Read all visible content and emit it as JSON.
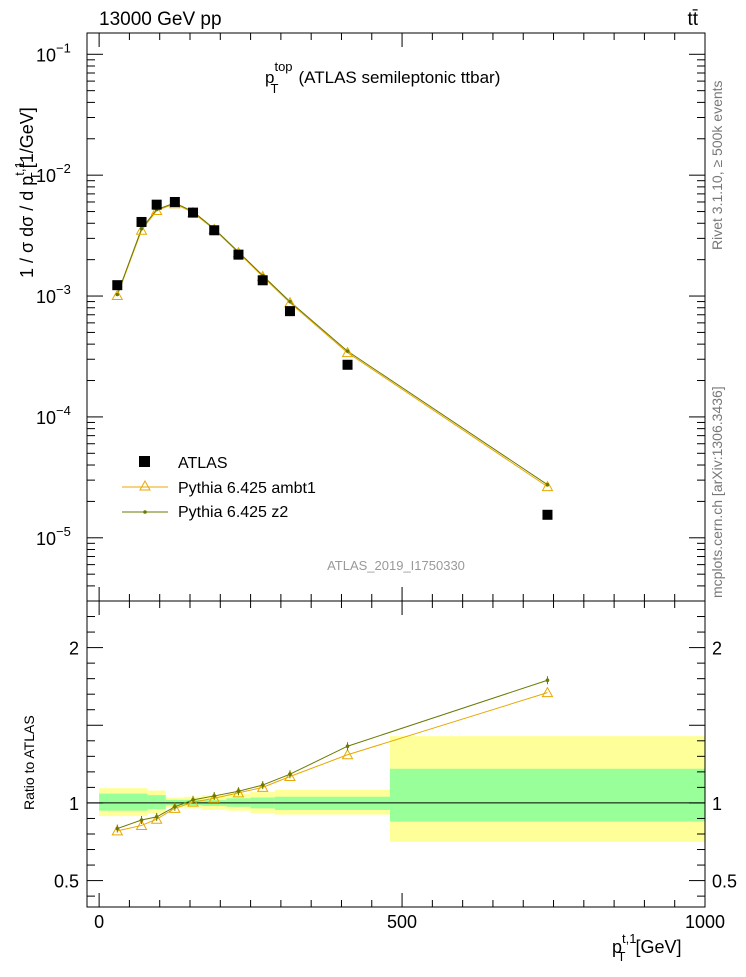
{
  "header": {
    "left": "13000 GeV pp",
    "right": "tt̄"
  },
  "side_labels": {
    "rivet": "Rivet 3.1.10, ≥ 500k events",
    "mcplots": "mcplots.cern.ch [arXiv:1306.3436]"
  },
  "chart_data": [
    {
      "type": "scatter",
      "title_main": "p",
      "title_sup": "top",
      "title_sub": "T",
      "title_rest": "(ATLAS semileptonic ttbar)",
      "ylabel": "1 / σ dσ / d p_T^{t,1} [1/GeV]",
      "yscale": "log",
      "ylim": [
        3e-06,
        0.15
      ],
      "xlim": [
        -20,
        1000
      ],
      "analysis_id": "ATLAS_2019_I1750330",
      "y_tick_labels": [
        {
          "value": 0.1,
          "base": "10",
          "exp": "−1"
        },
        {
          "value": 0.01,
          "base": "10",
          "exp": "−2"
        },
        {
          "value": 0.001,
          "base": "10",
          "exp": "−3"
        },
        {
          "value": 0.0001,
          "base": "10",
          "exp": "−4"
        },
        {
          "value": 1e-05,
          "base": "10",
          "exp": "−5"
        }
      ],
      "legend": [
        {
          "label": "ATLAS",
          "color": "#000000",
          "marker": "square"
        },
        {
          "label": "Pythia 6.425 ambt1",
          "color": "#e8a800",
          "marker": "triangle"
        },
        {
          "label": "Pythia 6.425 z2",
          "color": "#6b7a00",
          "marker": "dot"
        }
      ],
      "series": [
        {
          "name": "ATLAS",
          "x": [
            30,
            70,
            95,
            125,
            155,
            190,
            230,
            270,
            315,
            410,
            740
          ],
          "y": [
            0.00123,
            0.0041,
            0.0057,
            0.006,
            0.0049,
            0.0035,
            0.0022,
            0.00135,
            0.00075,
            0.00027,
            1.55e-05
          ]
        },
        {
          "name": "Pythia 6.425 ambt1",
          "x": [
            30,
            70,
            95,
            125,
            155,
            190,
            230,
            270,
            315,
            410,
            740
          ],
          "y": [
            0.00101,
            0.0035,
            0.0051,
            0.0058,
            0.0049,
            0.00355,
            0.00228,
            0.00145,
            0.00088,
            0.00034,
            2.65e-05
          ]
        },
        {
          "name": "Pythia 6.425 z2",
          "x": [
            30,
            70,
            95,
            125,
            155,
            190,
            230,
            270,
            315,
            410,
            740
          ],
          "y": [
            0.00103,
            0.0036,
            0.0052,
            0.0059,
            0.005,
            0.0036,
            0.00232,
            0.00148,
            0.0009,
            0.00035,
            2.75e-05
          ]
        }
      ]
    },
    {
      "type": "line",
      "ylabel": "Ratio to ATLAS",
      "xlabel": "p_T^{t,1} [GeV]",
      "ylim": [
        0.33,
        2.3
      ],
      "xlim": [
        -20,
        1000
      ],
      "y_tick_labels": [
        "2",
        "1",
        "0.5"
      ],
      "x_tick_labels": [
        "0",
        "500",
        "1000"
      ],
      "bands": [
        {
          "x0": 0,
          "x1": 80,
          "inner": [
            0.95,
            1.06
          ],
          "outer": [
            0.915,
            1.095
          ]
        },
        {
          "x0": 80,
          "x1": 110,
          "inner": [
            0.96,
            1.05
          ],
          "outer": [
            0.93,
            1.08
          ]
        },
        {
          "x0": 110,
          "x1": 140,
          "inner": [
            0.985,
            1.02
          ],
          "outer": [
            0.97,
            1.035
          ]
        },
        {
          "x0": 140,
          "x1": 170,
          "inner": [
            0.985,
            1.02
          ],
          "outer": [
            0.965,
            1.04
          ]
        },
        {
          "x0": 170,
          "x1": 210,
          "inner": [
            0.98,
            1.02
          ],
          "outer": [
            0.955,
            1.05
          ]
        },
        {
          "x0": 210,
          "x1": 250,
          "inner": [
            0.975,
            1.03
          ],
          "outer": [
            0.95,
            1.06
          ]
        },
        {
          "x0": 250,
          "x1": 290,
          "inner": [
            0.965,
            1.035
          ],
          "outer": [
            0.935,
            1.07
          ]
        },
        {
          "x0": 290,
          "x1": 480,
          "inner": [
            0.955,
            1.04
          ],
          "outer": [
            0.925,
            1.085
          ]
        },
        {
          "x0": 480,
          "x1": 1000,
          "inner": [
            0.88,
            1.22
          ],
          "outer": [
            0.75,
            1.43
          ]
        }
      ],
      "series": [
        {
          "name": "Pythia 6.425 ambt1",
          "x": [
            30,
            70,
            95,
            125,
            155,
            190,
            230,
            270,
            315,
            410,
            740
          ],
          "y": [
            0.82,
            0.855,
            0.895,
            0.965,
            1.005,
            1.03,
            1.065,
            1.1,
            1.17,
            1.31,
            1.71
          ]
        },
        {
          "name": "Pythia 6.425 z2",
          "x": [
            30,
            70,
            95,
            125,
            155,
            190,
            230,
            270,
            315,
            410,
            740
          ],
          "y": [
            0.835,
            0.89,
            0.91,
            0.975,
            1.02,
            1.045,
            1.075,
            1.115,
            1.185,
            1.365,
            1.79
          ]
        }
      ]
    }
  ],
  "colors": {
    "band_inner": "#99ff99",
    "band_outer": "#ffff99",
    "ambt1": "#e8a800",
    "z2": "#6b7a00",
    "data": "#000000"
  }
}
